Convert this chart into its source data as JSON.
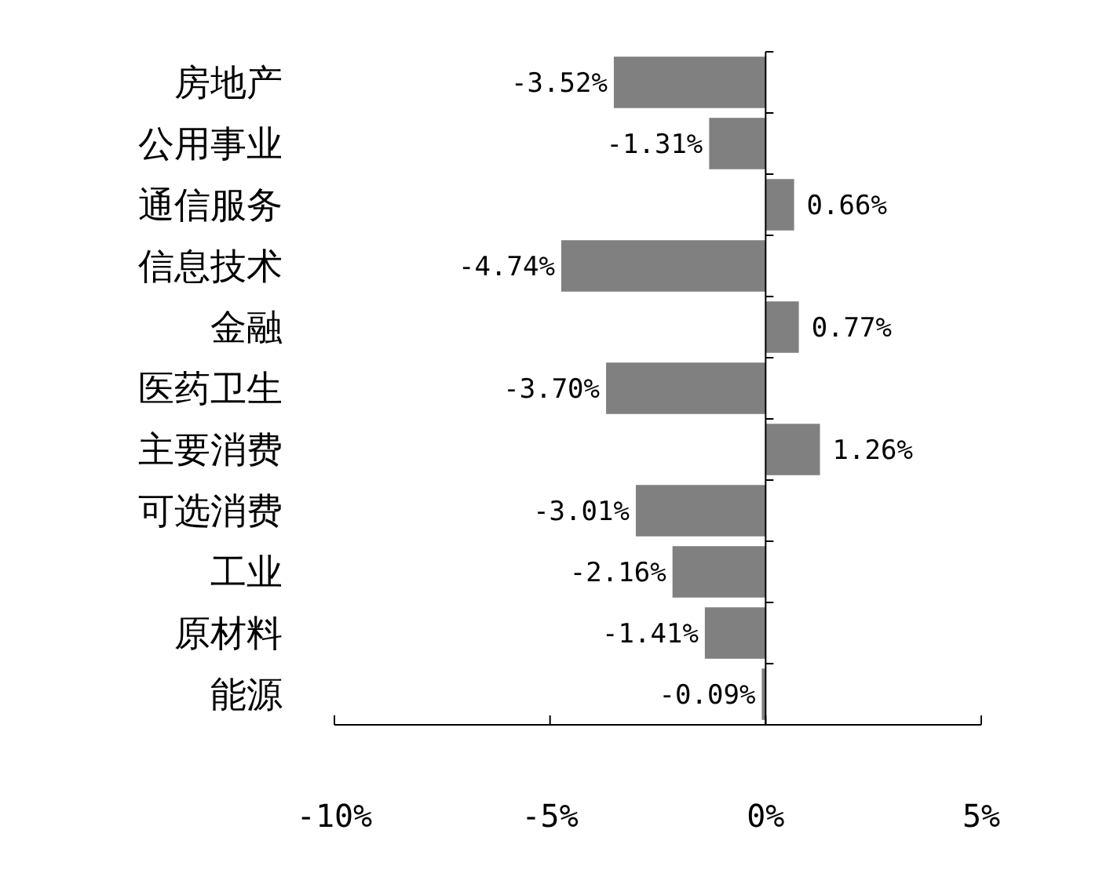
{
  "chart_data": {
    "type": "bar",
    "orientation": "horizontal",
    "categories": [
      "房地产",
      "公用事业",
      "通信服务",
      "信息技术",
      "金融",
      "医药卫生",
      "主要消费",
      "可选消费",
      "工业",
      "原材料",
      "能源"
    ],
    "values": [
      -3.52,
      -1.31,
      0.66,
      -4.74,
      0.77,
      -3.7,
      1.26,
      -3.01,
      -2.16,
      -1.41,
      -0.09
    ],
    "value_labels": [
      "-3.52%",
      "-1.31%",
      "0.66%",
      "-4.74%",
      "0.77%",
      "-3.70%",
      "1.26%",
      "-3.01%",
      "-2.16%",
      "-1.41%",
      "-0.09%"
    ],
    "color": "#808080",
    "xlim": [
      -10,
      5
    ],
    "xticks": [
      {
        "value": -10,
        "label": "-10%"
      },
      {
        "value": -5,
        "label": "-5%"
      },
      {
        "value": 0,
        "label": "0%"
      },
      {
        "value": 5,
        "label": "5%"
      }
    ]
  }
}
